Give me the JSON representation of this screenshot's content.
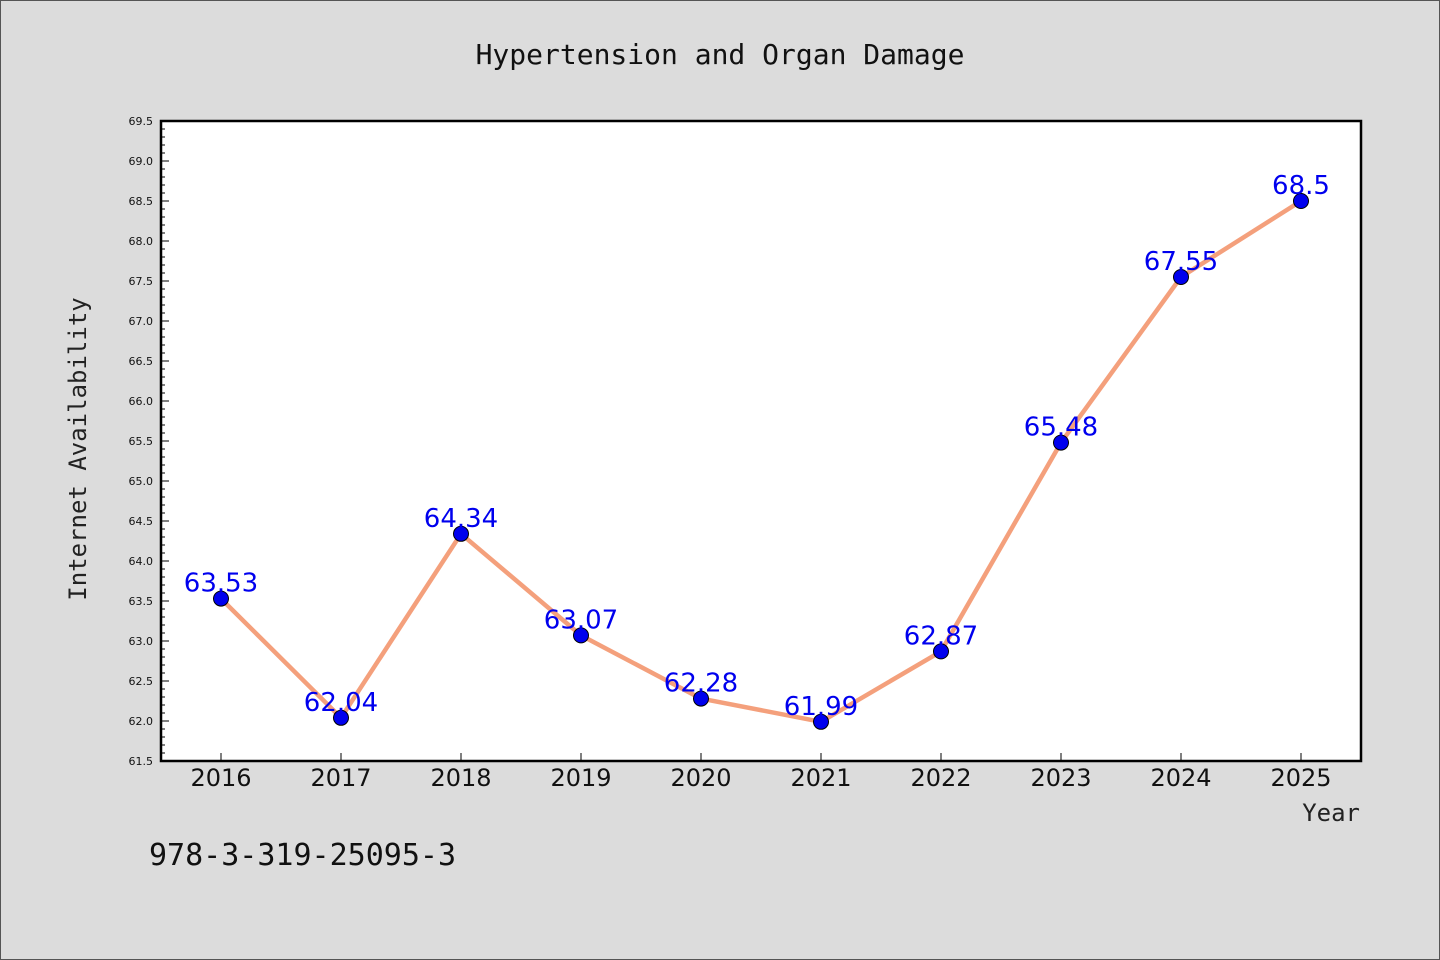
{
  "chart_data": {
    "type": "line",
    "title": "Hypertension and Organ Damage",
    "xlabel": "Year",
    "ylabel": "Internet Availability",
    "categories": [
      "2016",
      "2017",
      "2018",
      "2019",
      "2020",
      "2021",
      "2022",
      "2023",
      "2024",
      "2025"
    ],
    "series": [
      {
        "values": [
          63.53,
          62.04,
          64.34,
          63.07,
          62.28,
          61.99,
          62.87,
          65.48,
          67.55,
          68.5
        ],
        "labels": [
          "63.53",
          "62.04",
          "64.34",
          "63.07",
          "62.28",
          "61.99",
          "62.87",
          "65.48",
          "67.55",
          "68.5"
        ],
        "line_color": "#f4a07c",
        "marker_color": "#0000ee"
      }
    ],
    "ylim": [
      61.5,
      69.5
    ],
    "yticks": [
      "61.5",
      "62.0",
      "62.5",
      "63.0",
      "63.5",
      "64.0",
      "64.5",
      "65.0",
      "65.5",
      "66.0",
      "66.5",
      "67.0",
      "67.5",
      "68.0",
      "68.5",
      "69.0",
      "69.5"
    ],
    "grid": false,
    "label_color": "#0000ee"
  },
  "footnote": "978-3-319-25095-3"
}
